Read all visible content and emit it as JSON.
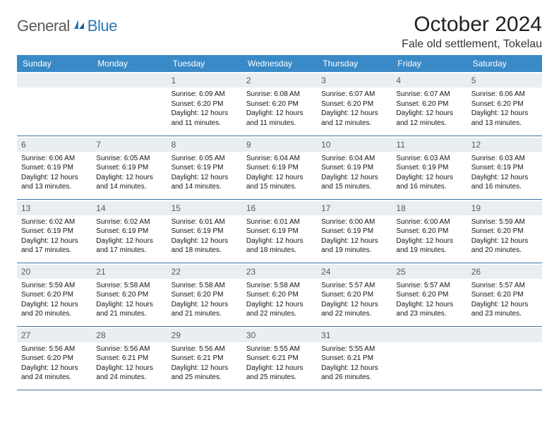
{
  "logo": {
    "text1": "General",
    "text2": "Blue"
  },
  "title": "October 2024",
  "location": "Fale old settlement, Tokelau",
  "colors": {
    "header_bg": "#3a8ac8",
    "header_text": "#ffffff",
    "daynum_bg": "#e9eef1",
    "daynum_text": "#555b60",
    "row_border": "#3a74a8",
    "logo_gray": "#5a5a5a",
    "logo_blue": "#2a7ab8"
  },
  "weekdays": [
    "Sunday",
    "Monday",
    "Tuesday",
    "Wednesday",
    "Thursday",
    "Friday",
    "Saturday"
  ],
  "weeks": [
    [
      null,
      null,
      {
        "n": "1",
        "sr": "Sunrise: 6:09 AM",
        "ss": "Sunset: 6:20 PM",
        "d1": "Daylight: 12 hours",
        "d2": "and 11 minutes."
      },
      {
        "n": "2",
        "sr": "Sunrise: 6:08 AM",
        "ss": "Sunset: 6:20 PM",
        "d1": "Daylight: 12 hours",
        "d2": "and 11 minutes."
      },
      {
        "n": "3",
        "sr": "Sunrise: 6:07 AM",
        "ss": "Sunset: 6:20 PM",
        "d1": "Daylight: 12 hours",
        "d2": "and 12 minutes."
      },
      {
        "n": "4",
        "sr": "Sunrise: 6:07 AM",
        "ss": "Sunset: 6:20 PM",
        "d1": "Daylight: 12 hours",
        "d2": "and 12 minutes."
      },
      {
        "n": "5",
        "sr": "Sunrise: 6:06 AM",
        "ss": "Sunset: 6:20 PM",
        "d1": "Daylight: 12 hours",
        "d2": "and 13 minutes."
      }
    ],
    [
      {
        "n": "6",
        "sr": "Sunrise: 6:06 AM",
        "ss": "Sunset: 6:19 PM",
        "d1": "Daylight: 12 hours",
        "d2": "and 13 minutes."
      },
      {
        "n": "7",
        "sr": "Sunrise: 6:05 AM",
        "ss": "Sunset: 6:19 PM",
        "d1": "Daylight: 12 hours",
        "d2": "and 14 minutes."
      },
      {
        "n": "8",
        "sr": "Sunrise: 6:05 AM",
        "ss": "Sunset: 6:19 PM",
        "d1": "Daylight: 12 hours",
        "d2": "and 14 minutes."
      },
      {
        "n": "9",
        "sr": "Sunrise: 6:04 AM",
        "ss": "Sunset: 6:19 PM",
        "d1": "Daylight: 12 hours",
        "d2": "and 15 minutes."
      },
      {
        "n": "10",
        "sr": "Sunrise: 6:04 AM",
        "ss": "Sunset: 6:19 PM",
        "d1": "Daylight: 12 hours",
        "d2": "and 15 minutes."
      },
      {
        "n": "11",
        "sr": "Sunrise: 6:03 AM",
        "ss": "Sunset: 6:19 PM",
        "d1": "Daylight: 12 hours",
        "d2": "and 16 minutes."
      },
      {
        "n": "12",
        "sr": "Sunrise: 6:03 AM",
        "ss": "Sunset: 6:19 PM",
        "d1": "Daylight: 12 hours",
        "d2": "and 16 minutes."
      }
    ],
    [
      {
        "n": "13",
        "sr": "Sunrise: 6:02 AM",
        "ss": "Sunset: 6:19 PM",
        "d1": "Daylight: 12 hours",
        "d2": "and 17 minutes."
      },
      {
        "n": "14",
        "sr": "Sunrise: 6:02 AM",
        "ss": "Sunset: 6:19 PM",
        "d1": "Daylight: 12 hours",
        "d2": "and 17 minutes."
      },
      {
        "n": "15",
        "sr": "Sunrise: 6:01 AM",
        "ss": "Sunset: 6:19 PM",
        "d1": "Daylight: 12 hours",
        "d2": "and 18 minutes."
      },
      {
        "n": "16",
        "sr": "Sunrise: 6:01 AM",
        "ss": "Sunset: 6:19 PM",
        "d1": "Daylight: 12 hours",
        "d2": "and 18 minutes."
      },
      {
        "n": "17",
        "sr": "Sunrise: 6:00 AM",
        "ss": "Sunset: 6:19 PM",
        "d1": "Daylight: 12 hours",
        "d2": "and 19 minutes."
      },
      {
        "n": "18",
        "sr": "Sunrise: 6:00 AM",
        "ss": "Sunset: 6:20 PM",
        "d1": "Daylight: 12 hours",
        "d2": "and 19 minutes."
      },
      {
        "n": "19",
        "sr": "Sunrise: 5:59 AM",
        "ss": "Sunset: 6:20 PM",
        "d1": "Daylight: 12 hours",
        "d2": "and 20 minutes."
      }
    ],
    [
      {
        "n": "20",
        "sr": "Sunrise: 5:59 AM",
        "ss": "Sunset: 6:20 PM",
        "d1": "Daylight: 12 hours",
        "d2": "and 20 minutes."
      },
      {
        "n": "21",
        "sr": "Sunrise: 5:58 AM",
        "ss": "Sunset: 6:20 PM",
        "d1": "Daylight: 12 hours",
        "d2": "and 21 minutes."
      },
      {
        "n": "22",
        "sr": "Sunrise: 5:58 AM",
        "ss": "Sunset: 6:20 PM",
        "d1": "Daylight: 12 hours",
        "d2": "and 21 minutes."
      },
      {
        "n": "23",
        "sr": "Sunrise: 5:58 AM",
        "ss": "Sunset: 6:20 PM",
        "d1": "Daylight: 12 hours",
        "d2": "and 22 minutes."
      },
      {
        "n": "24",
        "sr": "Sunrise: 5:57 AM",
        "ss": "Sunset: 6:20 PM",
        "d1": "Daylight: 12 hours",
        "d2": "and 22 minutes."
      },
      {
        "n": "25",
        "sr": "Sunrise: 5:57 AM",
        "ss": "Sunset: 6:20 PM",
        "d1": "Daylight: 12 hours",
        "d2": "and 23 minutes."
      },
      {
        "n": "26",
        "sr": "Sunrise: 5:57 AM",
        "ss": "Sunset: 6:20 PM",
        "d1": "Daylight: 12 hours",
        "d2": "and 23 minutes."
      }
    ],
    [
      {
        "n": "27",
        "sr": "Sunrise: 5:56 AM",
        "ss": "Sunset: 6:20 PM",
        "d1": "Daylight: 12 hours",
        "d2": "and 24 minutes."
      },
      {
        "n": "28",
        "sr": "Sunrise: 5:56 AM",
        "ss": "Sunset: 6:21 PM",
        "d1": "Daylight: 12 hours",
        "d2": "and 24 minutes."
      },
      {
        "n": "29",
        "sr": "Sunrise: 5:56 AM",
        "ss": "Sunset: 6:21 PM",
        "d1": "Daylight: 12 hours",
        "d2": "and 25 minutes."
      },
      {
        "n": "30",
        "sr": "Sunrise: 5:55 AM",
        "ss": "Sunset: 6:21 PM",
        "d1": "Daylight: 12 hours",
        "d2": "and 25 minutes."
      },
      {
        "n": "31",
        "sr": "Sunrise: 5:55 AM",
        "ss": "Sunset: 6:21 PM",
        "d1": "Daylight: 12 hours",
        "d2": "and 26 minutes."
      },
      null,
      null
    ]
  ]
}
